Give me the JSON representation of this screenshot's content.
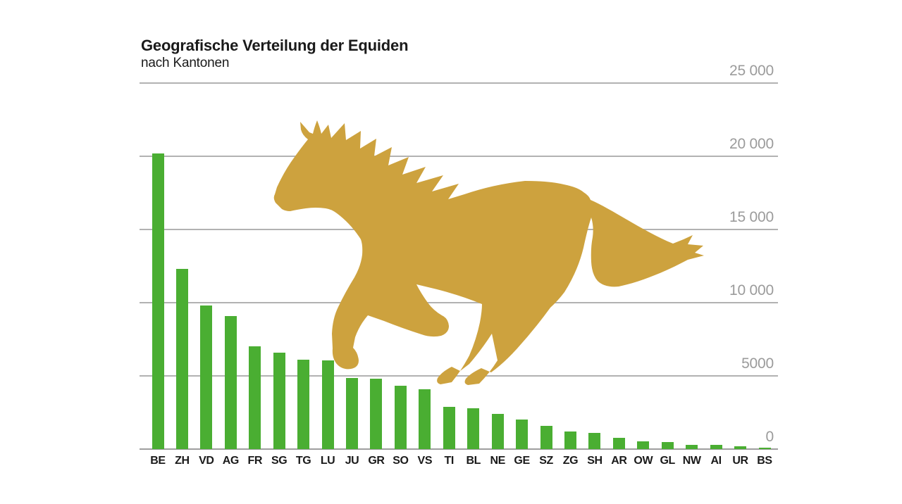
{
  "header": {
    "title": "Geografische Verteilung der Equiden",
    "subtitle": "nach Kantonen"
  },
  "chart_data": {
    "type": "bar",
    "title": "Geografische Verteilung der Equiden",
    "subtitle": "nach Kantonen",
    "categories": [
      "BE",
      "ZH",
      "VD",
      "AG",
      "FR",
      "SG",
      "TG",
      "LU",
      "JU",
      "GR",
      "SO",
      "VS",
      "TI",
      "BL",
      "NE",
      "GE",
      "SZ",
      "ZG",
      "SH",
      "AR",
      "OW",
      "GL",
      "NW",
      "AI",
      "UR",
      "BS"
    ],
    "values": [
      20200,
      12300,
      9800,
      9100,
      7000,
      6600,
      6100,
      6050,
      4850,
      4800,
      4350,
      4100,
      2900,
      2800,
      2400,
      2000,
      1600,
      1200,
      1100,
      770,
      530,
      480,
      290,
      280,
      190,
      100
    ],
    "xlabel": "",
    "ylabel": "",
    "ylim": [
      0,
      25000
    ],
    "y_ticks": [
      {
        "label": "0",
        "value": 0
      },
      {
        "label": "5000",
        "value": 5000
      },
      {
        "label": "10 000",
        "value": 10000
      },
      {
        "label": "15 000",
        "value": 15000
      },
      {
        "label": "20 000",
        "value": 20000
      },
      {
        "label": "25 000",
        "value": 25000
      }
    ],
    "grid": true,
    "legend": false,
    "legend_position": "none",
    "bar_color": "#4AAE32",
    "grid_color": "#B2B2B2",
    "baseline_color": "#9E9E9E",
    "tick_text_color": "#9B9B9B"
  },
  "decoration": {
    "horse_color": "#CDA23E"
  }
}
